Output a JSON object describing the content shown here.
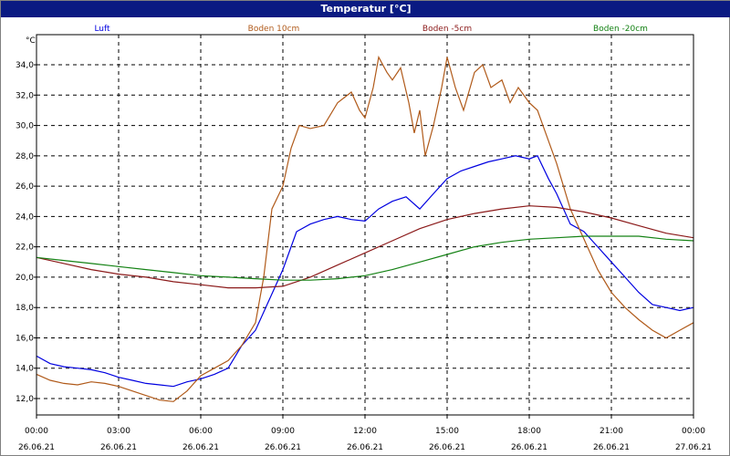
{
  "window": {
    "title": "Temperatur [°C]"
  },
  "colors": {
    "titlebar": "#0a1a82",
    "grid": "#000000"
  },
  "chart_data": {
    "type": "line",
    "title": "Temperatur [°C]",
    "ylabel": "°C",
    "ylim": [
      11,
      35.5
    ],
    "xlim": [
      0,
      24
    ],
    "grid": true,
    "legend_position": "top",
    "yticks": [
      "12,0",
      "14,0",
      "16,0",
      "18,0",
      "20,0",
      "22,0",
      "24,0",
      "26,0",
      "28,0",
      "30,0",
      "32,0",
      "34,0"
    ],
    "xticks": [
      {
        "time": "00:00",
        "date": "26.06.21"
      },
      {
        "time": "03:00",
        "date": "26.06.21"
      },
      {
        "time": "06:00",
        "date": "26.06.21"
      },
      {
        "time": "09:00",
        "date": "26.06.21"
      },
      {
        "time": "12:00",
        "date": "26.06.21"
      },
      {
        "time": "15:00",
        "date": "26.06.21"
      },
      {
        "time": "18:00",
        "date": "26.06.21"
      },
      {
        "time": "21:00",
        "date": "26.06.21"
      },
      {
        "time": "00:00",
        "date": "27.06.21"
      }
    ],
    "series": [
      {
        "name": "Luft",
        "color": "#0000e0",
        "points": [
          [
            0,
            14.8
          ],
          [
            0.5,
            14.3
          ],
          [
            1,
            14.1
          ],
          [
            1.5,
            14.0
          ],
          [
            2,
            13.9
          ],
          [
            2.5,
            13.7
          ],
          [
            3,
            13.4
          ],
          [
            3.5,
            13.2
          ],
          [
            4,
            13.0
          ],
          [
            4.5,
            12.9
          ],
          [
            5,
            12.8
          ],
          [
            5.5,
            13.1
          ],
          [
            6,
            13.3
          ],
          [
            6.5,
            13.6
          ],
          [
            7,
            14.0
          ],
          [
            7.5,
            15.5
          ],
          [
            8,
            16.5
          ],
          [
            8.5,
            18.5
          ],
          [
            9,
            20.5
          ],
          [
            9.5,
            23.0
          ],
          [
            10,
            23.5
          ],
          [
            10.5,
            23.8
          ],
          [
            11,
            24.0
          ],
          [
            11.5,
            23.8
          ],
          [
            12,
            23.7
          ],
          [
            12.5,
            24.5
          ],
          [
            13,
            25.0
          ],
          [
            13.5,
            25.3
          ],
          [
            14,
            24.5
          ],
          [
            14.5,
            25.5
          ],
          [
            15,
            26.5
          ],
          [
            15.5,
            27.0
          ],
          [
            16,
            27.3
          ],
          [
            16.5,
            27.6
          ],
          [
            17,
            27.8
          ],
          [
            17.5,
            28.0
          ],
          [
            18,
            27.8
          ],
          [
            18.3,
            28.0
          ],
          [
            18.7,
            26.5
          ],
          [
            19,
            25.5
          ],
          [
            19.5,
            23.5
          ],
          [
            20,
            23.0
          ],
          [
            20.5,
            22.0
          ],
          [
            21,
            21.0
          ],
          [
            21.5,
            20.0
          ],
          [
            22,
            19.0
          ],
          [
            22.5,
            18.2
          ],
          [
            23,
            18.0
          ],
          [
            23.5,
            17.8
          ],
          [
            24,
            18.0
          ]
        ]
      },
      {
        "name": "Boden 10cm",
        "color": "#b05a1a",
        "points": [
          [
            0,
            13.6
          ],
          [
            0.5,
            13.2
          ],
          [
            1,
            13.0
          ],
          [
            1.5,
            12.9
          ],
          [
            2,
            13.1
          ],
          [
            2.5,
            13.0
          ],
          [
            3,
            12.8
          ],
          [
            3.5,
            12.5
          ],
          [
            4,
            12.2
          ],
          [
            4.5,
            11.9
          ],
          [
            5,
            11.8
          ],
          [
            5.5,
            12.5
          ],
          [
            6,
            13.5
          ],
          [
            6.5,
            14.0
          ],
          [
            7,
            14.5
          ],
          [
            7.5,
            15.5
          ],
          [
            8,
            17.0
          ],
          [
            8.3,
            20.0
          ],
          [
            8.6,
            24.5
          ],
          [
            9,
            26.0
          ],
          [
            9.3,
            28.5
          ],
          [
            9.6,
            30.0
          ],
          [
            10,
            29.8
          ],
          [
            10.5,
            30.0
          ],
          [
            11,
            31.5
          ],
          [
            11.5,
            32.2
          ],
          [
            11.8,
            31.0
          ],
          [
            12,
            30.5
          ],
          [
            12.3,
            32.5
          ],
          [
            12.5,
            34.5
          ],
          [
            12.8,
            33.5
          ],
          [
            13,
            33.0
          ],
          [
            13.3,
            33.8
          ],
          [
            13.6,
            31.5
          ],
          [
            13.8,
            29.5
          ],
          [
            14,
            31.0
          ],
          [
            14.2,
            28.0
          ],
          [
            14.5,
            30.0
          ],
          [
            14.8,
            32.5
          ],
          [
            15,
            34.5
          ],
          [
            15.3,
            32.5
          ],
          [
            15.6,
            31.0
          ],
          [
            16,
            33.5
          ],
          [
            16.3,
            34.0
          ],
          [
            16.6,
            32.5
          ],
          [
            17,
            33.0
          ],
          [
            17.3,
            31.5
          ],
          [
            17.6,
            32.5
          ],
          [
            18,
            31.5
          ],
          [
            18.3,
            31.0
          ],
          [
            18.6,
            29.5
          ],
          [
            19,
            27.5
          ],
          [
            19.5,
            24.5
          ],
          [
            20,
            22.5
          ],
          [
            20.5,
            20.5
          ],
          [
            21,
            19.0
          ],
          [
            21.5,
            18.0
          ],
          [
            22,
            17.2
          ],
          [
            22.5,
            16.5
          ],
          [
            23,
            16.0
          ],
          [
            23.5,
            16.5
          ],
          [
            24,
            17.0
          ]
        ]
      },
      {
        "name": "Boden -5cm",
        "color": "#8b1a1a",
        "points": [
          [
            0,
            21.3
          ],
          [
            1,
            20.9
          ],
          [
            2,
            20.5
          ],
          [
            3,
            20.2
          ],
          [
            4,
            20.0
          ],
          [
            5,
            19.7
          ],
          [
            6,
            19.5
          ],
          [
            7,
            19.3
          ],
          [
            8,
            19.3
          ],
          [
            9,
            19.4
          ],
          [
            10,
            20.0
          ],
          [
            11,
            20.8
          ],
          [
            12,
            21.6
          ],
          [
            13,
            22.4
          ],
          [
            14,
            23.2
          ],
          [
            15,
            23.8
          ],
          [
            16,
            24.2
          ],
          [
            17,
            24.5
          ],
          [
            18,
            24.7
          ],
          [
            19,
            24.6
          ],
          [
            20,
            24.3
          ],
          [
            21,
            23.9
          ],
          [
            22,
            23.4
          ],
          [
            23,
            22.9
          ],
          [
            24,
            22.6
          ]
        ]
      },
      {
        "name": "Boden -20cm",
        "color": "#148214",
        "points": [
          [
            0,
            21.3
          ],
          [
            1,
            21.1
          ],
          [
            2,
            20.9
          ],
          [
            3,
            20.7
          ],
          [
            4,
            20.5
          ],
          [
            5,
            20.3
          ],
          [
            6,
            20.1
          ],
          [
            7,
            20.0
          ],
          [
            8,
            19.9
          ],
          [
            9,
            19.8
          ],
          [
            10,
            19.8
          ],
          [
            11,
            19.9
          ],
          [
            12,
            20.1
          ],
          [
            13,
            20.5
          ],
          [
            14,
            21.0
          ],
          [
            15,
            21.5
          ],
          [
            16,
            22.0
          ],
          [
            17,
            22.3
          ],
          [
            18,
            22.5
          ],
          [
            19,
            22.6
          ],
          [
            20,
            22.7
          ],
          [
            21,
            22.7
          ],
          [
            22,
            22.7
          ],
          [
            23,
            22.5
          ],
          [
            24,
            22.4
          ]
        ]
      }
    ]
  }
}
